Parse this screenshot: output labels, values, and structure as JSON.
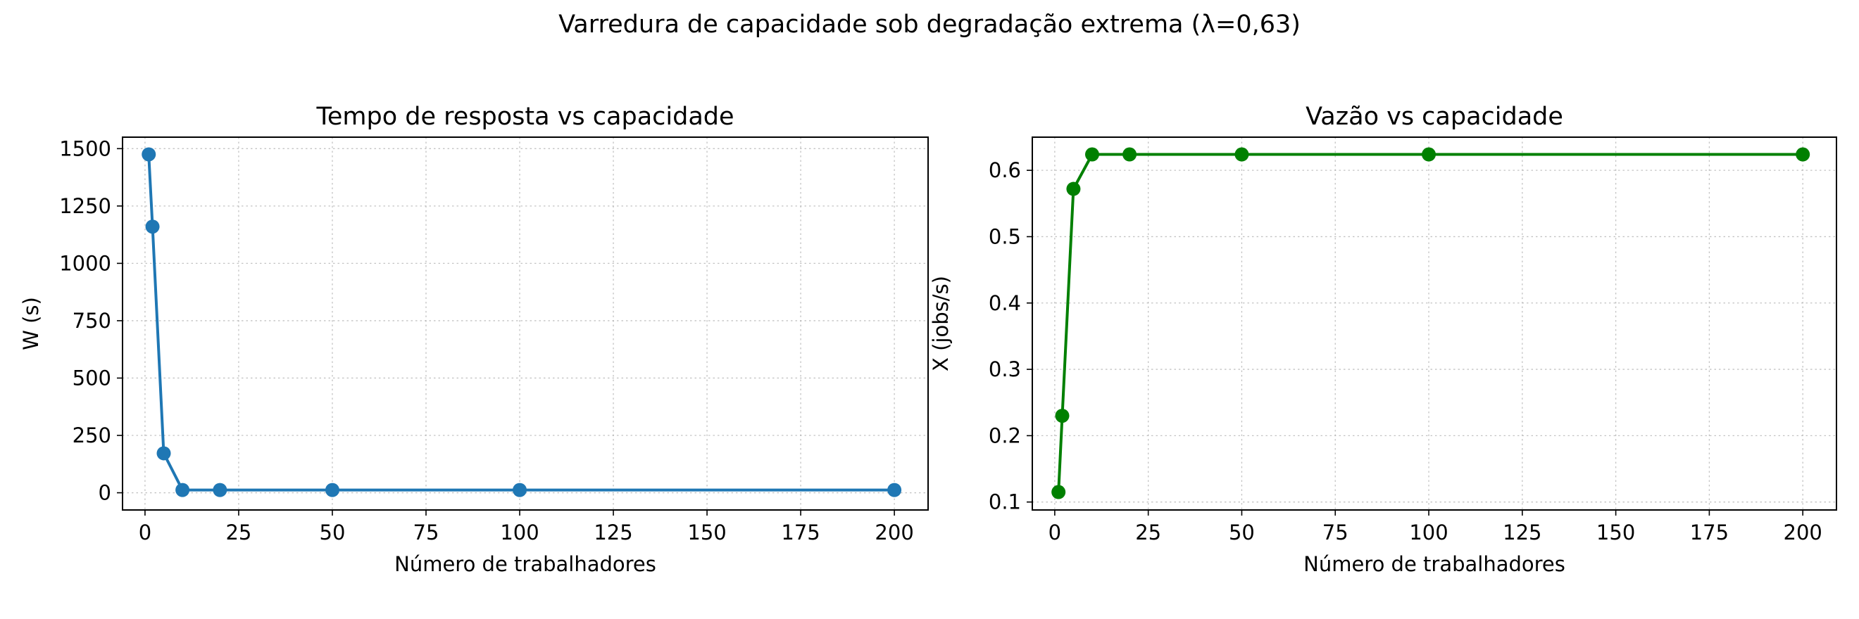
{
  "figure": {
    "suptitle": "Varredura de capacidade sob degradação extrema (λ=0,63)"
  },
  "chart_data": [
    {
      "type": "line",
      "title": "Tempo de resposta vs capacidade",
      "xlabel": "Número de trabalhadores",
      "ylabel": "W (s)",
      "xlim": [
        -6,
        209
      ],
      "ylim": [
        -75,
        1550
      ],
      "xticks": [
        0,
        25,
        50,
        75,
        100,
        125,
        150,
        175,
        200
      ],
      "yticks": [
        0,
        250,
        500,
        750,
        1000,
        1250,
        1500
      ],
      "xtick_labels": [
        "0",
        "25",
        "50",
        "75",
        "100",
        "125",
        "150",
        "175",
        "200"
      ],
      "ytick_labels": [
        "0",
        "250",
        "500",
        "750",
        "1000",
        "1250",
        "1500"
      ],
      "grid": true,
      "color": "#1f77b4",
      "marker": "circle",
      "x": [
        1,
        2,
        5,
        10,
        20,
        50,
        100,
        200
      ],
      "y": [
        1475,
        1160,
        172,
        12,
        12,
        12,
        12,
        12
      ]
    },
    {
      "type": "line",
      "title": "Vazão vs capacidade",
      "xlabel": "Número de trabalhadores",
      "ylabel": "X (jobs/s)",
      "xlim": [
        -6,
        209
      ],
      "ylim": [
        0.088,
        0.65
      ],
      "xticks": [
        0,
        25,
        50,
        75,
        100,
        125,
        150,
        175,
        200
      ],
      "yticks": [
        0.1,
        0.2,
        0.3,
        0.4,
        0.5,
        0.6
      ],
      "xtick_labels": [
        "0",
        "25",
        "50",
        "75",
        "100",
        "125",
        "150",
        "175",
        "200"
      ],
      "ytick_labels": [
        "0.1",
        "0.2",
        "0.3",
        "0.4",
        "0.5",
        "0.6"
      ],
      "grid": true,
      "color": "#008000",
      "marker": "circle",
      "x": [
        1,
        2,
        5,
        10,
        20,
        50,
        100,
        200
      ],
      "y": [
        0.115,
        0.23,
        0.572,
        0.624,
        0.624,
        0.624,
        0.624,
        0.624
      ]
    }
  ]
}
